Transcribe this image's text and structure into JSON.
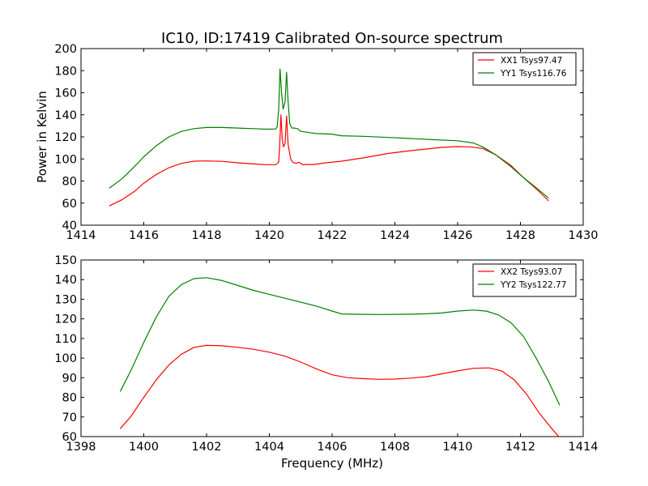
{
  "chart_data": [
    {
      "type": "line",
      "title": "IC10, ID:17419 Calibrated On-source spectrum",
      "xlabel": "",
      "ylabel": "Power in Kelvin",
      "xlim": [
        1414,
        1430
      ],
      "ylim": [
        40,
        200
      ],
      "xticks": [
        1414,
        1416,
        1418,
        1420,
        1422,
        1424,
        1426,
        1428,
        1430
      ],
      "yticks": [
        40,
        60,
        80,
        100,
        120,
        140,
        160,
        180,
        200
      ],
      "legend_position": "top-right",
      "series": [
        {
          "name": "XX1 Tsys97.47",
          "color": "#ff0000",
          "points": [
            [
              1414.9,
              57.5
            ],
            [
              1415.3,
              63
            ],
            [
              1415.7,
              70.5
            ],
            [
              1416.0,
              78
            ],
            [
              1416.4,
              86
            ],
            [
              1416.8,
              92
            ],
            [
              1417.2,
              96
            ],
            [
              1417.6,
              98
            ],
            [
              1418.0,
              98.2
            ],
            [
              1418.5,
              97.8
            ],
            [
              1419.0,
              96.5
            ],
            [
              1419.5,
              95.5
            ],
            [
              1419.9,
              94.8
            ],
            [
              1420.2,
              94.8
            ],
            [
              1420.3,
              97
            ],
            [
              1420.33,
              112
            ],
            [
              1420.37,
              140
            ],
            [
              1420.41,
              118
            ],
            [
              1420.45,
              111
            ],
            [
              1420.5,
              114
            ],
            [
              1420.55,
              139
            ],
            [
              1420.6,
              113
            ],
            [
              1420.68,
              100
            ],
            [
              1420.75,
              97
            ],
            [
              1420.85,
              96
            ],
            [
              1420.95,
              97
            ],
            [
              1421.05,
              95
            ],
            [
              1421.4,
              95
            ],
            [
              1421.8,
              96.5
            ],
            [
              1422.3,
              98
            ],
            [
              1423.0,
              101
            ],
            [
              1423.8,
              105
            ],
            [
              1424.5,
              107.5
            ],
            [
              1425.0,
              109
            ],
            [
              1425.5,
              110.5
            ],
            [
              1426.0,
              111.2
            ],
            [
              1426.4,
              111
            ],
            [
              1426.8,
              109.5
            ],
            [
              1427.2,
              104
            ],
            [
              1427.7,
              94
            ],
            [
              1428.1,
              83
            ],
            [
              1428.5,
              73
            ],
            [
              1428.9,
              62
            ]
          ]
        },
        {
          "name": "YY1 Tsys116.76",
          "color": "#008000",
          "points": [
            [
              1414.9,
              73.5
            ],
            [
              1415.3,
              82
            ],
            [
              1415.7,
              93
            ],
            [
              1416.0,
              102
            ],
            [
              1416.4,
              112
            ],
            [
              1416.8,
              120
            ],
            [
              1417.2,
              125
            ],
            [
              1417.6,
              127.5
            ],
            [
              1418.0,
              128.5
            ],
            [
              1418.5,
              128.5
            ],
            [
              1419.0,
              128
            ],
            [
              1419.5,
              127.5
            ],
            [
              1419.9,
              127
            ],
            [
              1420.2,
              127.2
            ],
            [
              1420.25,
              129
            ],
            [
              1420.3,
              145
            ],
            [
              1420.34,
              181.5
            ],
            [
              1420.39,
              160
            ],
            [
              1420.44,
              145
            ],
            [
              1420.5,
              152
            ],
            [
              1420.55,
              178.5
            ],
            [
              1420.6,
              152
            ],
            [
              1420.65,
              132
            ],
            [
              1420.72,
              128
            ],
            [
              1420.8,
              128
            ],
            [
              1420.9,
              127.5
            ],
            [
              1421.0,
              125
            ],
            [
              1421.5,
              123
            ],
            [
              1422.0,
              122.5
            ],
            [
              1422.3,
              121
            ],
            [
              1423.0,
              120.5
            ],
            [
              1423.8,
              119.5
            ],
            [
              1424.5,
              118.5
            ],
            [
              1425.2,
              117.5
            ],
            [
              1426.0,
              116.5
            ],
            [
              1426.5,
              114.5
            ],
            [
              1426.8,
              111
            ],
            [
              1427.2,
              104
            ],
            [
              1427.7,
              93
            ],
            [
              1428.1,
              83
            ],
            [
              1428.5,
              74
            ],
            [
              1428.9,
              64.5
            ]
          ]
        }
      ]
    },
    {
      "type": "line",
      "title": "",
      "xlabel": "Frequency (MHz)",
      "ylabel": "",
      "xlim": [
        1398,
        1414
      ],
      "ylim": [
        60,
        150
      ],
      "xticks": [
        1398,
        1400,
        1402,
        1404,
        1406,
        1408,
        1410,
        1412,
        1414
      ],
      "yticks": [
        60,
        70,
        80,
        90,
        100,
        110,
        120,
        130,
        140,
        150
      ],
      "legend_position": "top-right",
      "series": [
        {
          "name": "XX2 Tsys93.07",
          "color": "#ff0000",
          "points": [
            [
              1399.25,
              64
            ],
            [
              1399.6,
              70.5
            ],
            [
              1400.0,
              80
            ],
            [
              1400.4,
              89
            ],
            [
              1400.8,
              96.5
            ],
            [
              1401.2,
              102
            ],
            [
              1401.6,
              105.5
            ],
            [
              1402.0,
              106.5
            ],
            [
              1402.5,
              106.3
            ],
            [
              1403.0,
              105.5
            ],
            [
              1403.5,
              104.5
            ],
            [
              1404.0,
              103
            ],
            [
              1404.5,
              101
            ],
            [
              1405.0,
              98
            ],
            [
              1405.5,
              94.5
            ],
            [
              1406.0,
              91.5
            ],
            [
              1406.5,
              90
            ],
            [
              1407.0,
              89.5
            ],
            [
              1407.5,
              89.2
            ],
            [
              1408.0,
              89.3
            ],
            [
              1408.5,
              89.8
            ],
            [
              1409.0,
              90.5
            ],
            [
              1409.5,
              92
            ],
            [
              1410.0,
              93.5
            ],
            [
              1410.5,
              94.8
            ],
            [
              1411.0,
              95
            ],
            [
              1411.4,
              93.5
            ],
            [
              1411.8,
              89
            ],
            [
              1412.2,
              81.5
            ],
            [
              1412.6,
              72
            ],
            [
              1413.0,
              64
            ],
            [
              1413.25,
              59.5
            ]
          ]
        },
        {
          "name": "YY2 Tsys122.77",
          "color": "#008000",
          "points": [
            [
              1399.25,
              83
            ],
            [
              1399.6,
              94
            ],
            [
              1400.0,
              108
            ],
            [
              1400.4,
              121
            ],
            [
              1400.8,
              131.5
            ],
            [
              1401.2,
              137.5
            ],
            [
              1401.6,
              140.5
            ],
            [
              1402.0,
              141
            ],
            [
              1402.5,
              139.5
            ],
            [
              1403.0,
              137
            ],
            [
              1403.5,
              134.5
            ],
            [
              1404.0,
              132.5
            ],
            [
              1404.5,
              130.5
            ],
            [
              1405.0,
              128.5
            ],
            [
              1405.5,
              126.5
            ],
            [
              1406.0,
              124
            ],
            [
              1406.3,
              122.5
            ],
            [
              1407.0,
              122.3
            ],
            [
              1407.5,
              122.2
            ],
            [
              1408.0,
              122.3
            ],
            [
              1408.5,
              122.4
            ],
            [
              1409.0,
              122.6
            ],
            [
              1409.5,
              123
            ],
            [
              1410.0,
              124
            ],
            [
              1410.5,
              124.5
            ],
            [
              1410.9,
              124
            ],
            [
              1411.3,
              122
            ],
            [
              1411.7,
              118
            ],
            [
              1412.1,
              111
            ],
            [
              1412.5,
              100
            ],
            [
              1412.9,
              88
            ],
            [
              1413.25,
              76
            ]
          ]
        }
      ]
    }
  ]
}
